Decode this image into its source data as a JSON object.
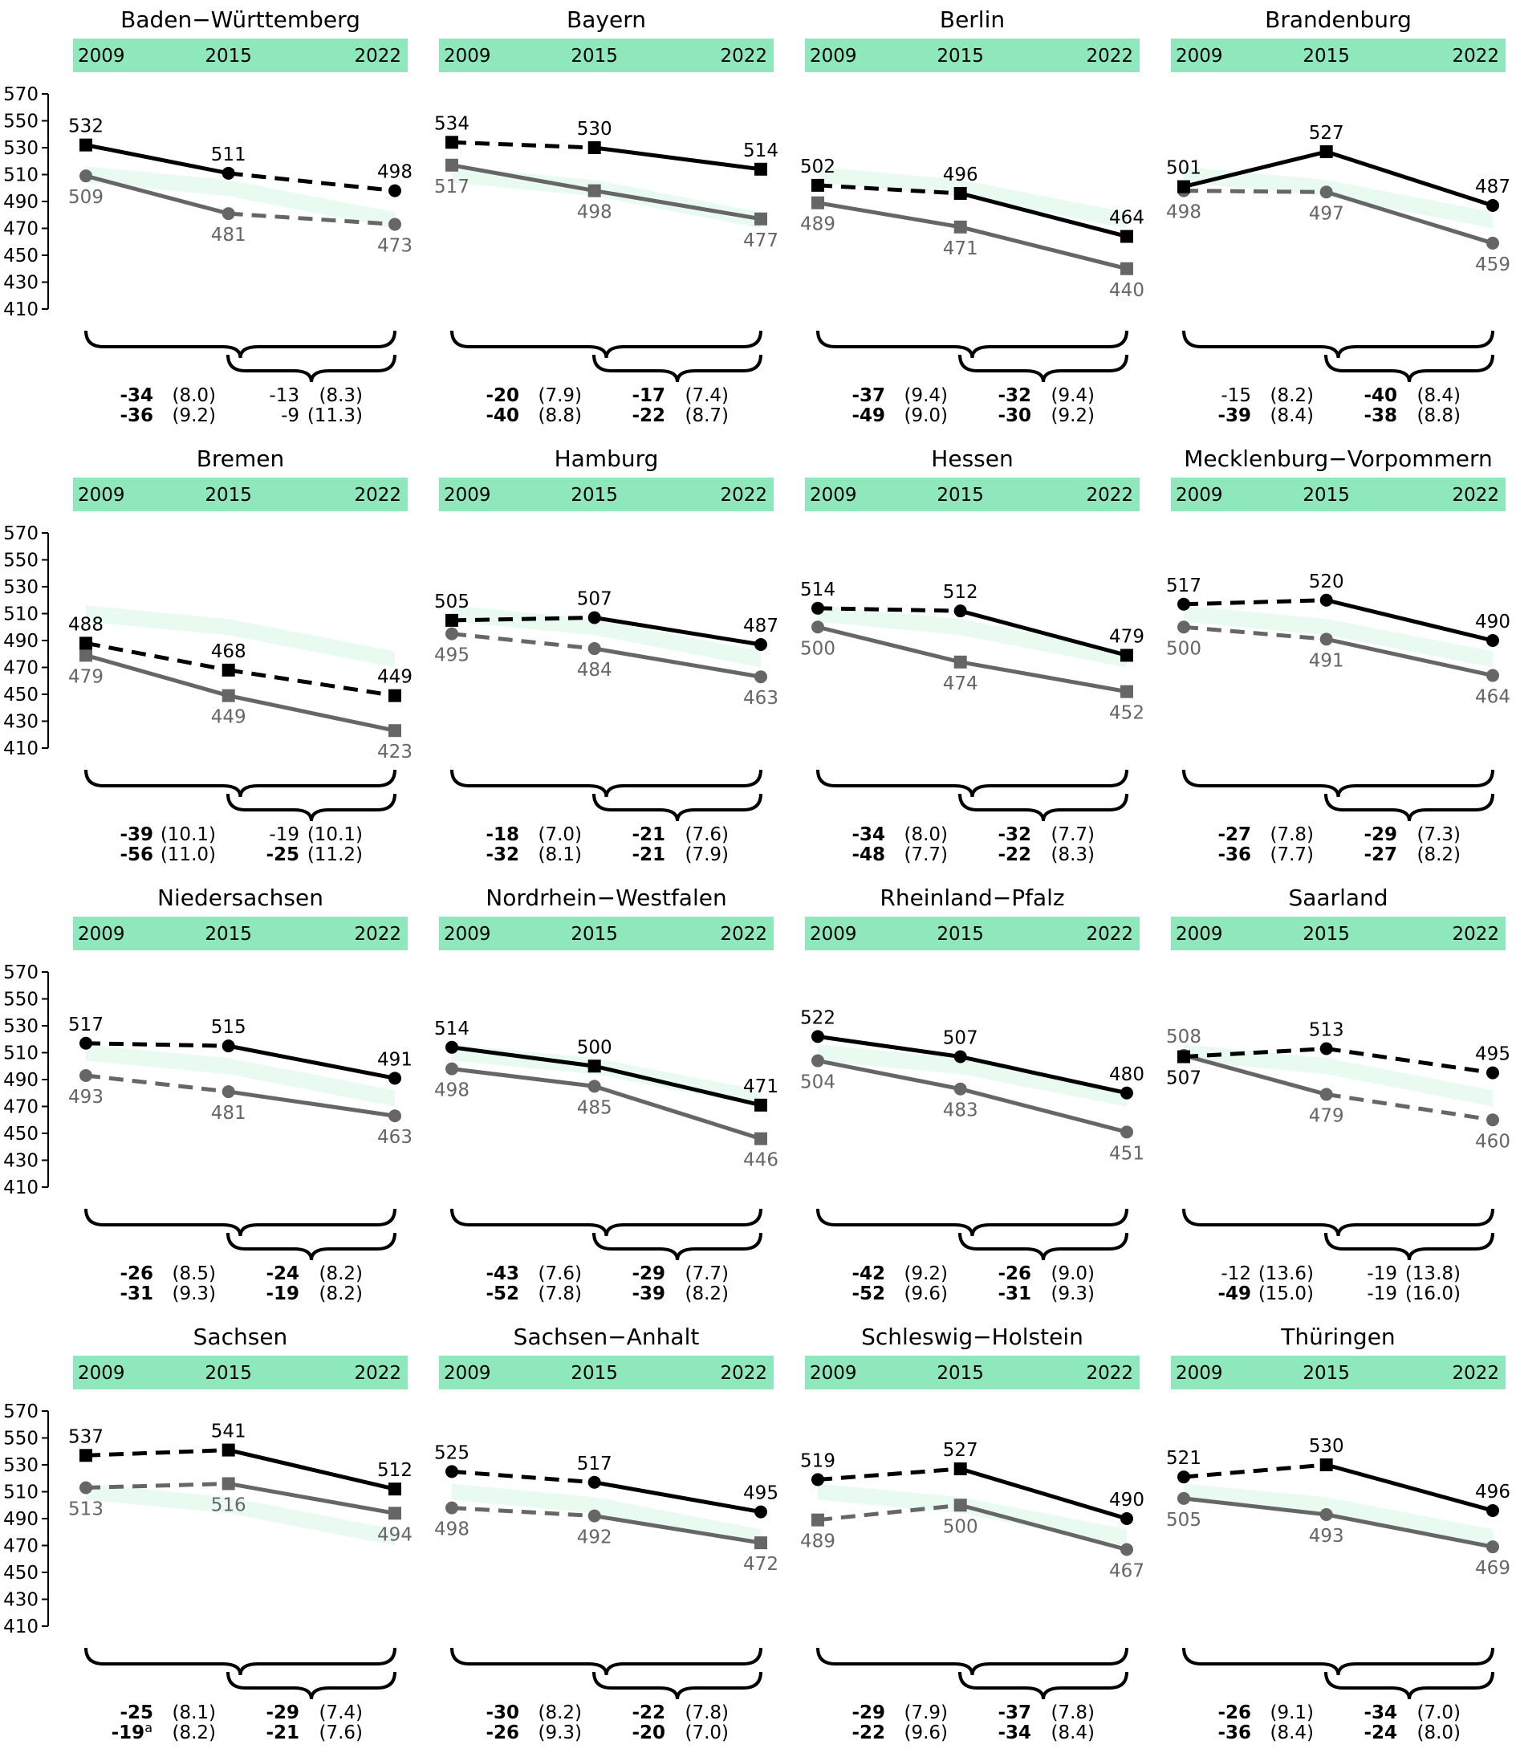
{
  "chart_data": {
    "type": "line",
    "x_years": [
      "2009",
      "2015",
      "2022"
    ],
    "yticks": [
      570,
      550,
      530,
      510,
      490,
      470,
      450,
      430,
      410
    ],
    "ylim": [
      410,
      570
    ],
    "colors": {
      "series_a": "#000000",
      "series_b": "#666666",
      "header": "#8ee8bb",
      "band": "#e9fbf1"
    },
    "panels": [
      {
        "name": "Baden−Württemberg",
        "series_a": {
          "values": [
            532,
            511,
            498
          ],
          "markers": [
            "square",
            "circle",
            "circle"
          ],
          "dashed": [
            false,
            true
          ]
        },
        "series_b": {
          "values": [
            509,
            481,
            473
          ],
          "markers": [
            "circle",
            "circle",
            "circle"
          ],
          "dashed": [
            false,
            true
          ]
        },
        "brace_long": {
          "a": {
            "value": "-34",
            "se": "(8.0)",
            "bold": true
          },
          "b": {
            "value": "-36",
            "se": "(9.2)",
            "bold": true
          }
        },
        "brace_short": {
          "a": {
            "value": "-13",
            "se": "(8.3)",
            "bold": false
          },
          "b": {
            "value": "-9",
            "se": "(11.3)",
            "bold": false
          }
        }
      },
      {
        "name": "Bayern",
        "series_a": {
          "values": [
            534,
            530,
            514
          ],
          "markers": [
            "square",
            "square",
            "square"
          ],
          "dashed": [
            true,
            false
          ]
        },
        "series_b": {
          "values": [
            517,
            498,
            477
          ],
          "markers": [
            "square",
            "square",
            "square"
          ],
          "dashed": [
            false,
            false
          ]
        },
        "brace_long": {
          "a": {
            "value": "-20",
            "se": "(7.9)",
            "bold": true
          },
          "b": {
            "value": "-40",
            "se": "(8.8)",
            "bold": true
          }
        },
        "brace_short": {
          "a": {
            "value": "-17",
            "se": "(7.4)",
            "bold": true
          },
          "b": {
            "value": "-22",
            "se": "(8.7)",
            "bold": true
          }
        }
      },
      {
        "name": "Berlin",
        "series_a": {
          "values": [
            502,
            496,
            464
          ],
          "markers": [
            "square",
            "square",
            "square"
          ],
          "dashed": [
            true,
            false
          ]
        },
        "series_b": {
          "values": [
            489,
            471,
            440
          ],
          "markers": [
            "square",
            "square",
            "square"
          ],
          "dashed": [
            false,
            false
          ]
        },
        "brace_long": {
          "a": {
            "value": "-37",
            "se": "(9.4)",
            "bold": true
          },
          "b": {
            "value": "-49",
            "se": "(9.0)",
            "bold": true
          }
        },
        "brace_short": {
          "a": {
            "value": "-32",
            "se": "(9.4)",
            "bold": true
          },
          "b": {
            "value": "-30",
            "se": "(9.2)",
            "bold": true
          }
        }
      },
      {
        "name": "Brandenburg",
        "series_a": {
          "values": [
            501,
            527,
            487
          ],
          "markers": [
            "square",
            "square",
            "circle"
          ],
          "dashed": [
            false,
            false
          ]
        },
        "series_b": {
          "values": [
            498,
            497,
            459
          ],
          "markers": [
            "circle",
            "circle",
            "circle"
          ],
          "dashed": [
            true,
            false
          ]
        },
        "brace_long": {
          "a": {
            "value": "-15",
            "se": "(8.2)",
            "bold": false
          },
          "b": {
            "value": "-39",
            "se": "(8.4)",
            "bold": true
          }
        },
        "brace_short": {
          "a": {
            "value": "-40",
            "se": "(8.4)",
            "bold": true
          },
          "b": {
            "value": "-38",
            "se": "(8.8)",
            "bold": true
          }
        }
      },
      {
        "name": "Bremen",
        "series_a": {
          "values": [
            488,
            468,
            449
          ],
          "markers": [
            "square",
            "square",
            "square"
          ],
          "dashed": [
            true,
            true
          ]
        },
        "series_b": {
          "values": [
            479,
            449,
            423
          ],
          "markers": [
            "square",
            "square",
            "square"
          ],
          "dashed": [
            false,
            false
          ]
        },
        "brace_long": {
          "a": {
            "value": "-39",
            "se": "(10.1)",
            "bold": true
          },
          "b": {
            "value": "-56",
            "se": "(11.0)",
            "bold": true
          }
        },
        "brace_short": {
          "a": {
            "value": "-19",
            "se": "(10.1)",
            "bold": false
          },
          "b": {
            "value": "-25",
            "se": "(11.2)",
            "bold": true
          }
        }
      },
      {
        "name": "Hamburg",
        "series_a": {
          "values": [
            505,
            507,
            487
          ],
          "markers": [
            "square",
            "circle",
            "circle"
          ],
          "dashed": [
            true,
            false
          ]
        },
        "series_b": {
          "values": [
            495,
            484,
            463
          ],
          "markers": [
            "circle",
            "circle",
            "circle"
          ],
          "dashed": [
            true,
            false
          ]
        },
        "brace_long": {
          "a": {
            "value": "-18",
            "se": "(7.0)",
            "bold": true
          },
          "b": {
            "value": "-32",
            "se": "(8.1)",
            "bold": true
          }
        },
        "brace_short": {
          "a": {
            "value": "-21",
            "se": "(7.6)",
            "bold": true
          },
          "b": {
            "value": "-21",
            "se": "(7.9)",
            "bold": true
          }
        }
      },
      {
        "name": "Hessen",
        "series_a": {
          "values": [
            514,
            512,
            479
          ],
          "markers": [
            "circle",
            "circle",
            "square"
          ],
          "dashed": [
            true,
            false
          ]
        },
        "series_b": {
          "values": [
            500,
            474,
            452
          ],
          "markers": [
            "circle",
            "square",
            "square"
          ],
          "dashed": [
            false,
            false
          ]
        },
        "brace_long": {
          "a": {
            "value": "-34",
            "se": "(8.0)",
            "bold": true
          },
          "b": {
            "value": "-48",
            "se": "(7.7)",
            "bold": true
          }
        },
        "brace_short": {
          "a": {
            "value": "-32",
            "se": "(7.7)",
            "bold": true
          },
          "b": {
            "value": "-22",
            "se": "(8.3)",
            "bold": true
          }
        }
      },
      {
        "name": "Mecklenburg−Vorpommern",
        "series_a": {
          "values": [
            517,
            520,
            490
          ],
          "markers": [
            "circle",
            "circle",
            "circle"
          ],
          "dashed": [
            true,
            false
          ]
        },
        "series_b": {
          "values": [
            500,
            491,
            464
          ],
          "markers": [
            "circle",
            "circle",
            "circle"
          ],
          "dashed": [
            true,
            false
          ]
        },
        "brace_long": {
          "a": {
            "value": "-27",
            "se": "(7.8)",
            "bold": true
          },
          "b": {
            "value": "-36",
            "se": "(7.7)",
            "bold": true
          }
        },
        "brace_short": {
          "a": {
            "value": "-29",
            "se": "(7.3)",
            "bold": true
          },
          "b": {
            "value": "-27",
            "se": "(8.2)",
            "bold": true
          }
        }
      },
      {
        "name": "Niedersachsen",
        "series_a": {
          "values": [
            517,
            515,
            491
          ],
          "markers": [
            "circle",
            "circle",
            "circle"
          ],
          "dashed": [
            true,
            false
          ]
        },
        "series_b": {
          "values": [
            493,
            481,
            463
          ],
          "markers": [
            "circle",
            "circle",
            "circle"
          ],
          "dashed": [
            true,
            false
          ]
        },
        "brace_long": {
          "a": {
            "value": "-26",
            "se": "(8.5)",
            "bold": true
          },
          "b": {
            "value": "-31",
            "se": "(9.3)",
            "bold": true
          }
        },
        "brace_short": {
          "a": {
            "value": "-24",
            "se": "(8.2)",
            "bold": true
          },
          "b": {
            "value": "-19",
            "se": "(8.2)",
            "bold": true
          }
        }
      },
      {
        "name": "Nordrhein−Westfalen",
        "series_a": {
          "values": [
            514,
            500,
            471
          ],
          "markers": [
            "circle",
            "square",
            "square"
          ],
          "dashed": [
            false,
            false
          ]
        },
        "series_b": {
          "values": [
            498,
            485,
            446
          ],
          "markers": [
            "circle",
            "circle",
            "square"
          ],
          "dashed": [
            false,
            false
          ]
        },
        "brace_long": {
          "a": {
            "value": "-43",
            "se": "(7.6)",
            "bold": true
          },
          "b": {
            "value": "-52",
            "se": "(7.8)",
            "bold": true
          }
        },
        "brace_short": {
          "a": {
            "value": "-29",
            "se": "(7.7)",
            "bold": true
          },
          "b": {
            "value": "-39",
            "se": "(8.2)",
            "bold": true
          }
        }
      },
      {
        "name": "Rheinland−Pfalz",
        "series_a": {
          "values": [
            522,
            507,
            480
          ],
          "markers": [
            "circle",
            "circle",
            "circle"
          ],
          "dashed": [
            false,
            false
          ]
        },
        "series_b": {
          "values": [
            504,
            483,
            451
          ],
          "markers": [
            "circle",
            "circle",
            "circle"
          ],
          "dashed": [
            false,
            false
          ]
        },
        "brace_long": {
          "a": {
            "value": "-42",
            "se": "(9.2)",
            "bold": true
          },
          "b": {
            "value": "-52",
            "se": "(9.6)",
            "bold": true
          }
        },
        "brace_short": {
          "a": {
            "value": "-26",
            "se": "(9.0)",
            "bold": true
          },
          "b": {
            "value": "-31",
            "se": "(9.3)",
            "bold": true
          }
        }
      },
      {
        "name": "Saarland",
        "series_a": {
          "values": [
            507,
            513,
            495
          ],
          "markers": [
            "square",
            "circle",
            "circle"
          ],
          "dashed": [
            true,
            true
          ]
        },
        "series_b": {
          "values": [
            508,
            479,
            460
          ],
          "markers": [
            "circle",
            "circle",
            "circle"
          ],
          "dashed": [
            false,
            true
          ]
        },
        "label_a_below": true,
        "brace_long": {
          "a": {
            "value": "-12",
            "se": "(13.6)",
            "bold": false
          },
          "b": {
            "value": "-49",
            "se": "(15.0)",
            "bold": true
          }
        },
        "brace_short": {
          "a": {
            "value": "-19",
            "se": "(13.8)",
            "bold": false
          },
          "b": {
            "value": "-19",
            "se": "(16.0)",
            "bold": false
          }
        }
      },
      {
        "name": "Sachsen",
        "series_a": {
          "values": [
            537,
            541,
            512
          ],
          "markers": [
            "square",
            "square",
            "square"
          ],
          "dashed": [
            true,
            false
          ]
        },
        "series_b": {
          "values": [
            513,
            516,
            494
          ],
          "markers": [
            "circle",
            "square",
            "square"
          ],
          "dashed": [
            true,
            false
          ]
        },
        "brace_long": {
          "a": {
            "value": "-25",
            "se": "(8.1)",
            "bold": true
          },
          "b": {
            "value": "-19",
            "sup": "a",
            "se": "(8.2)",
            "bold": true
          }
        },
        "brace_short": {
          "a": {
            "value": "-29",
            "se": "(7.4)",
            "bold": true
          },
          "b": {
            "value": "-21",
            "se": "(7.6)",
            "bold": true
          }
        }
      },
      {
        "name": "Sachsen−Anhalt",
        "series_a": {
          "values": [
            525,
            517,
            495
          ],
          "markers": [
            "circle",
            "circle",
            "circle"
          ],
          "dashed": [
            true,
            false
          ]
        },
        "series_b": {
          "values": [
            498,
            492,
            472
          ],
          "markers": [
            "circle",
            "circle",
            "square"
          ],
          "dashed": [
            true,
            false
          ]
        },
        "brace_long": {
          "a": {
            "value": "-30",
            "se": "(8.2)",
            "bold": true
          },
          "b": {
            "value": "-26",
            "se": "(9.3)",
            "bold": true
          }
        },
        "brace_short": {
          "a": {
            "value": "-22",
            "se": "(7.8)",
            "bold": true
          },
          "b": {
            "value": "-20",
            "se": "(7.0)",
            "bold": true
          }
        }
      },
      {
        "name": "Schleswig−Holstein",
        "series_a": {
          "values": [
            519,
            527,
            490
          ],
          "markers": [
            "circle",
            "square",
            "circle"
          ],
          "dashed": [
            true,
            false
          ]
        },
        "series_b": {
          "values": [
            489,
            500,
            467
          ],
          "markers": [
            "square",
            "square",
            "circle"
          ],
          "dashed": [
            true,
            false
          ]
        },
        "brace_long": {
          "a": {
            "value": "-29",
            "se": "(7.9)",
            "bold": true
          },
          "b": {
            "value": "-22",
            "se": "(9.6)",
            "bold": true
          }
        },
        "brace_short": {
          "a": {
            "value": "-37",
            "se": "(7.8)",
            "bold": true
          },
          "b": {
            "value": "-34",
            "se": "(8.4)",
            "bold": true
          }
        }
      },
      {
        "name": "Thüringen",
        "series_a": {
          "values": [
            521,
            530,
            496
          ],
          "markers": [
            "circle",
            "square",
            "circle"
          ],
          "dashed": [
            true,
            false
          ]
        },
        "series_b": {
          "values": [
            505,
            493,
            469
          ],
          "markers": [
            "circle",
            "circle",
            "circle"
          ],
          "dashed": [
            false,
            false
          ]
        },
        "brace_long": {
          "a": {
            "value": "-26",
            "se": "(9.1)",
            "bold": true
          },
          "b": {
            "value": "-36",
            "se": "(8.4)",
            "bold": true
          }
        },
        "brace_short": {
          "a": {
            "value": "-34",
            "se": "(7.0)",
            "bold": true
          },
          "b": {
            "value": "-24",
            "se": "(8.0)",
            "bold": true
          }
        }
      }
    ]
  }
}
